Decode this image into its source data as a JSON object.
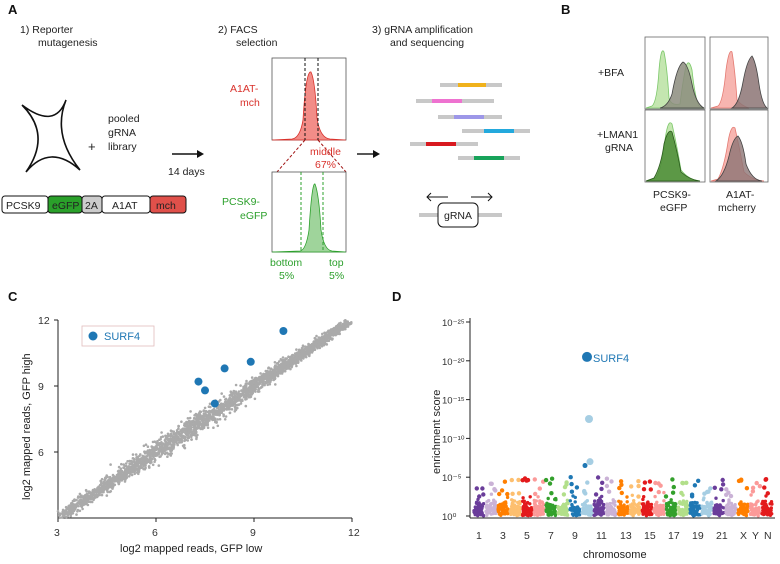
{
  "panels": {
    "A": "A",
    "B": "B",
    "C": "C",
    "D": "D"
  },
  "panelA": {
    "step1_line1": "1)  Reporter",
    "step1_line2": "mutagenesis",
    "step2_line1": "2)  FACS",
    "step2_line2": "selection",
    "step3_line1": "3)  gRNA amplification",
    "step3_line2": "and sequencing",
    "pooled_line1": "pooled",
    "pooled_line2": "gRNA",
    "pooled_line3": "library",
    "plus": "+",
    "days": "14 days",
    "construct": [
      "PCSK9",
      "eGFP",
      "2A",
      "A1AT",
      "mch"
    ],
    "a1at_line1": "A1AT-",
    "a1at_line2": "mch",
    "middle_line1": "middle",
    "middle_line2": "67%",
    "pcsk9_line1": "PCSK9-",
    "pcsk9_line2": "eGFP",
    "bottom_line1": "bottom",
    "bottom_line2": "5%",
    "top_line1": "top",
    "top_line2": "5%",
    "grna": "gRNA",
    "colors": {
      "red": "#d9312b",
      "green": "#2ca02c",
      "construct_green": "#2aa02a",
      "construct_red": "#e0504a",
      "construct_gray": "#cccccc"
    }
  },
  "panelB": {
    "row1": "+BFA",
    "row2_line1": "+LMAN1",
    "row2_line2": "gRNA",
    "col1_line1": "PCSK9-",
    "col1_line2": "eGFP",
    "col2_line1": "A1AT-",
    "col2_line2": "mcherry"
  },
  "chart_data": [
    {
      "type": "scatter",
      "title": "",
      "xlabel": "log2 mapped reads, GFP low",
      "ylabel": "log2 mapped reads, GFP high",
      "xlim": [
        3,
        12
      ],
      "ylim": [
        3,
        12
      ],
      "xticks": [
        "3",
        "6",
        "9",
        "12"
      ],
      "yticks": [
        "6",
        "9",
        "12"
      ],
      "legend": "SURF4",
      "highlighted_points": [
        {
          "x": 9.9,
          "y": 11.5
        },
        {
          "x": 8.9,
          "y": 10.1
        },
        {
          "x": 8.1,
          "y": 9.8
        },
        {
          "x": 7.3,
          "y": 9.2
        },
        {
          "x": 7.5,
          "y": 8.8
        },
        {
          "x": 7.8,
          "y": 8.2
        }
      ],
      "highlight_color": "#1f77b4",
      "bulk_color": "#aaaaaa"
    },
    {
      "type": "scatter",
      "title": "",
      "xlabel": "chromosome",
      "ylabel": "enrichment score",
      "yticks": [
        "10⁰",
        "10⁻⁵",
        "10⁻¹⁰",
        "10⁻¹⁵",
        "10⁻²⁰",
        "10⁻²⁵"
      ],
      "ylim_exponent": [
        0,
        25
      ],
      "chromosome_labels": [
        "1",
        "3",
        "5",
        "7",
        "9",
        "11",
        "13",
        "15",
        "17",
        "19",
        "21",
        "X",
        "Y",
        "N"
      ],
      "chromosomes": [
        "1",
        "2",
        "3",
        "4",
        "5",
        "6",
        "7",
        "8",
        "9",
        "10",
        "11",
        "12",
        "13",
        "14",
        "15",
        "16",
        "17",
        "18",
        "19",
        "20",
        "21",
        "22",
        "X",
        "Y",
        "N"
      ],
      "chromosome_colors": [
        "#6a3d9a",
        "#cab2d6",
        "#ff7f00",
        "#fdbf6f",
        "#e31a1c",
        "#fb9a99",
        "#33a02c",
        "#b2df8a",
        "#1f78b4",
        "#a6cee3",
        "#6a3d9a",
        "#cab2d6",
        "#ff7f00",
        "#fdbf6f",
        "#e31a1c",
        "#fb9a99",
        "#33a02c",
        "#b2df8a",
        "#1f78b4",
        "#a6cee3",
        "#6a3d9a",
        "#cab2d6",
        "#ff7f00",
        "#fb9a99",
        "#e31a1c"
      ],
      "annotation": "SURF4",
      "peak": {
        "chromosome": "10",
        "exponent": 20.5
      }
    }
  ]
}
